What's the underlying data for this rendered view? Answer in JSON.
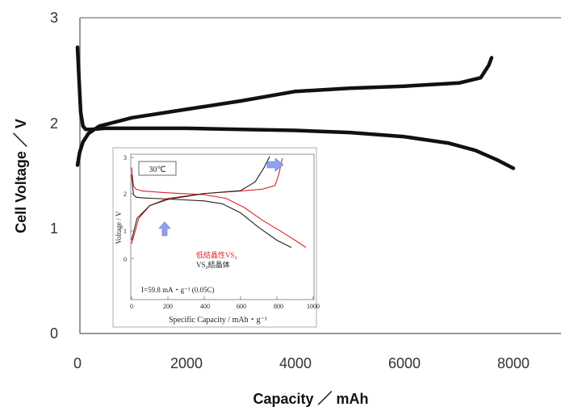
{
  "chart_data": [
    {
      "type": "line",
      "xlabel": "Capacity ／ mAh",
      "ylabel": "Cell Voltage ／ V",
      "xlim": [
        0,
        9000
      ],
      "ylim": [
        0,
        3
      ],
      "x_ticks": [
        "0",
        "2000",
        "4000",
        "6000",
        "8000"
      ],
      "y_ticks": [
        "0",
        "1",
        "2",
        "3"
      ],
      "grid": false,
      "series": [
        {
          "role": "discharge",
          "color": "#111111",
          "x": [
            0,
            30,
            60,
            100,
            150,
            250,
            500,
            1000,
            2000,
            3000,
            4000,
            5000,
            6000,
            6800,
            7300,
            7700,
            8000
          ],
          "y": [
            2.72,
            2.4,
            2.1,
            1.97,
            1.94,
            1.94,
            1.95,
            1.95,
            1.95,
            1.94,
            1.93,
            1.91,
            1.87,
            1.81,
            1.74,
            1.65,
            1.57
          ]
        },
        {
          "role": "charge",
          "color": "#111111",
          "x": [
            0,
            40,
            100,
            200,
            400,
            700,
            1000,
            2000,
            3000,
            4000,
            5000,
            6000,
            7000,
            7400,
            7550,
            7600
          ],
          "y": [
            1.6,
            1.72,
            1.82,
            1.9,
            1.97,
            2.01,
            2.05,
            2.13,
            2.21,
            2.3,
            2.33,
            2.35,
            2.38,
            2.43,
            2.55,
            2.62
          ]
        }
      ]
    },
    {
      "type": "line",
      "xlabel": "Specific Capacity / mAh・g⁻¹",
      "ylabel": "Voltage / V",
      "xlim": [
        0,
        1000
      ],
      "ylim": [
        0,
        3
      ],
      "x_ticks": [
        "0",
        "200",
        "400",
        "600",
        "800",
        "1000"
      ],
      "y_ticks": [
        "0",
        "1",
        "2",
        "3"
      ],
      "temperature_label": "30℃",
      "rate_label": "I=59.8 mA・g⁻¹ (0.05C)",
      "series": [
        {
          "name": "低結晶性VS₄",
          "color": "#dd2222",
          "discharge": {
            "x": [
              0,
              10,
              25,
              60,
              200,
              400,
              520,
              620,
              720,
              820,
              900,
              960
            ],
            "y": [
              2.5,
              2.0,
              1.9,
              1.85,
              1.8,
              1.75,
              1.65,
              1.4,
              1.05,
              0.75,
              0.5,
              0.3
            ]
          },
          "charge": {
            "x": [
              0,
              40,
              100,
              200,
              400,
              600,
              720,
              790,
              810,
              830
            ],
            "y": [
              0.4,
              1.1,
              1.45,
              1.65,
              1.78,
              1.85,
              1.9,
              2.0,
              2.3,
              2.75
            ]
          }
        },
        {
          "name": "VS₄結晶体",
          "color": "#222222",
          "discharge": {
            "x": [
              0,
              10,
              25,
              60,
              200,
              400,
              500,
              600,
              700,
              800,
              880
            ],
            "y": [
              2.3,
              1.75,
              1.68,
              1.66,
              1.63,
              1.58,
              1.5,
              1.25,
              0.85,
              0.5,
              0.3
            ]
          },
          "charge": {
            "x": [
              0,
              30,
              100,
              200,
              400,
              600,
              680,
              730,
              760
            ],
            "y": [
              0.5,
              1.1,
              1.45,
              1.62,
              1.78,
              1.86,
              2.1,
              2.5,
              2.8
            ]
          }
        }
      ]
    }
  ]
}
